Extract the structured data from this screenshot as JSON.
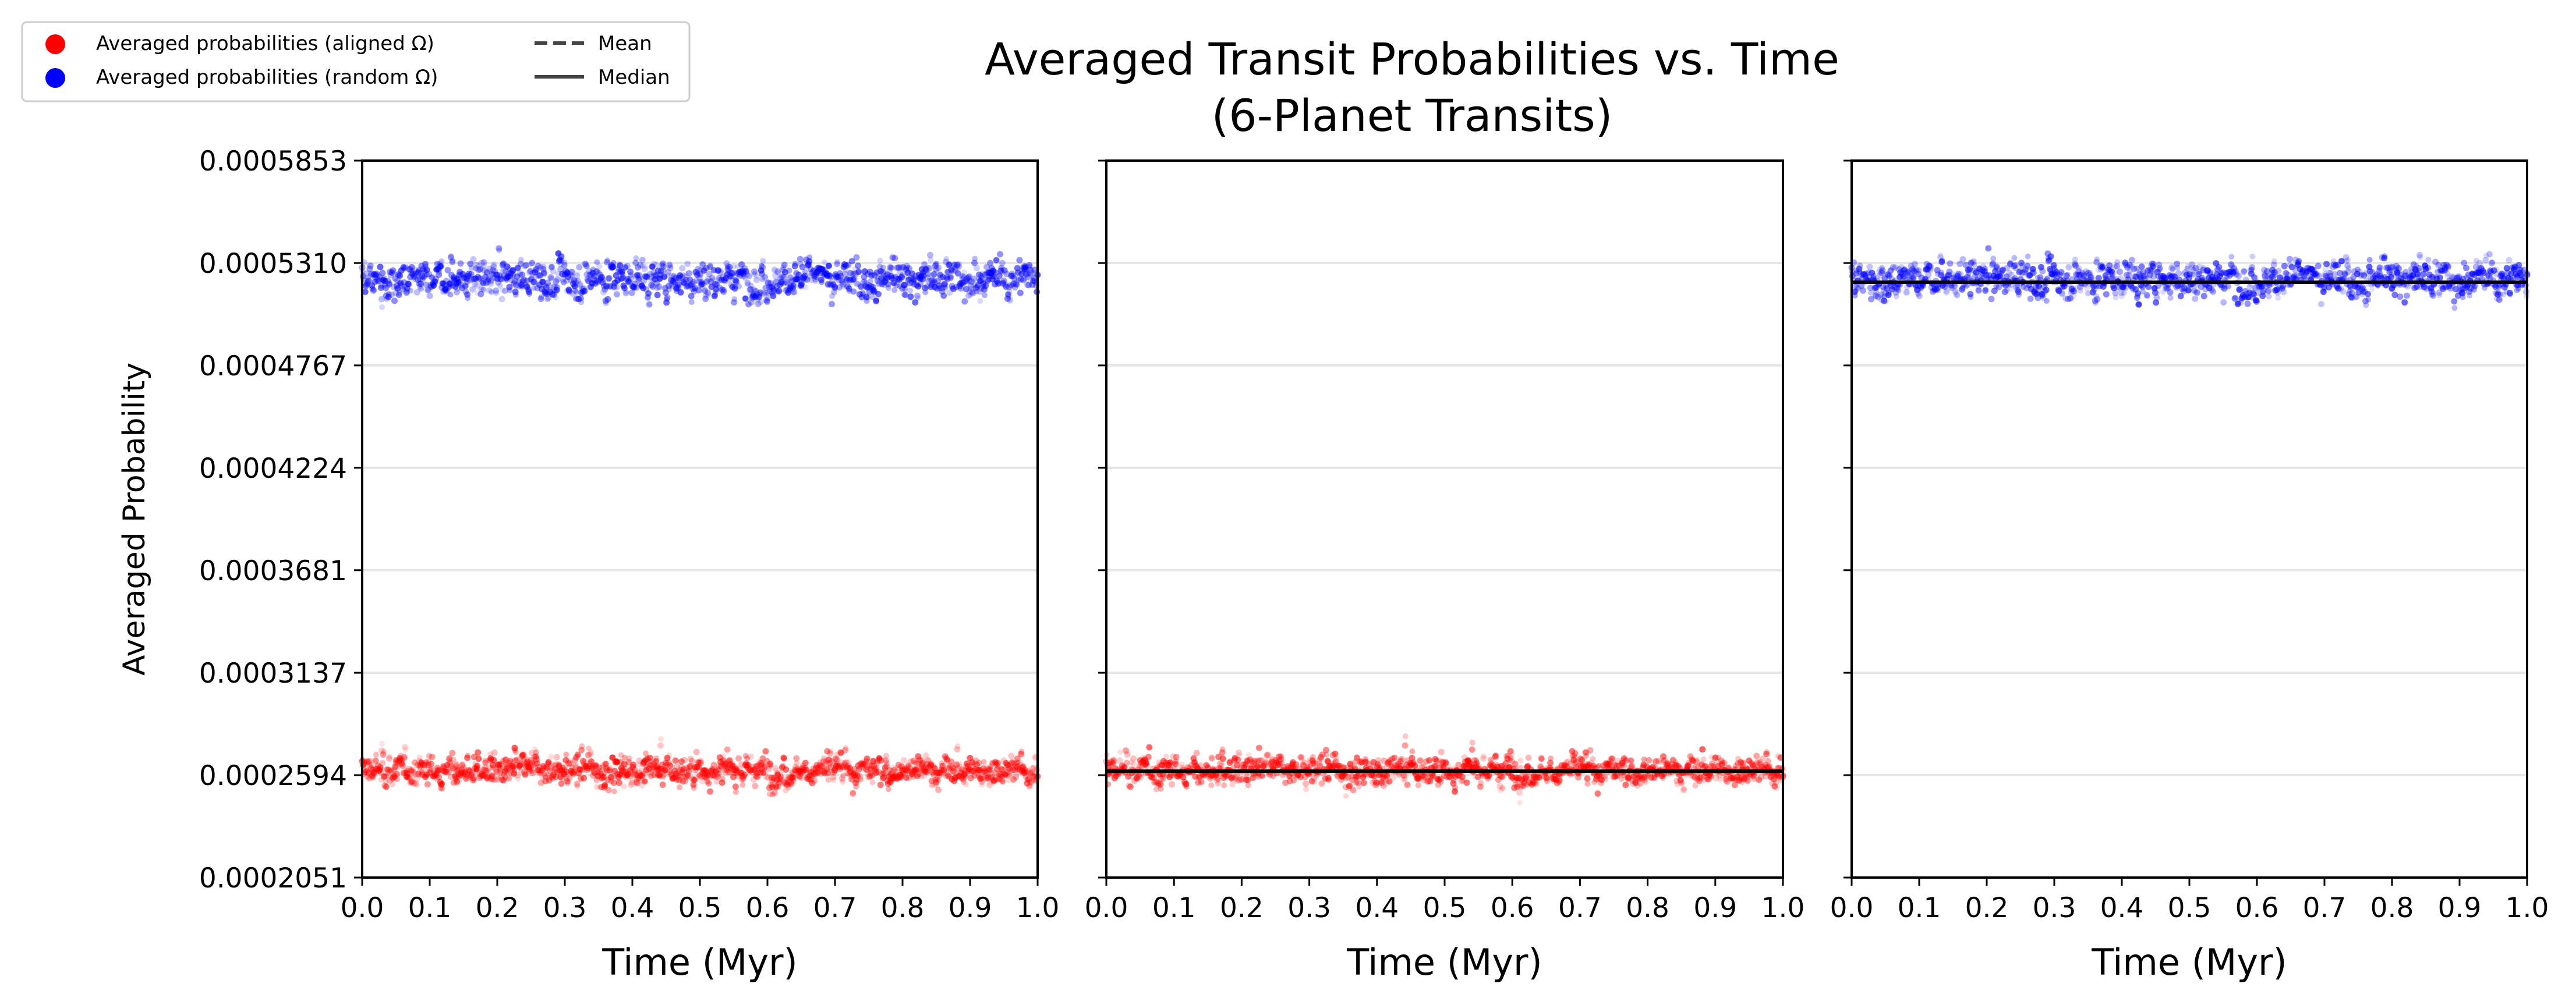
{
  "title_line1": "Averaged Transit Probabilities vs. Time",
  "title_line2": "(6-Planet Transits)",
  "legend": {
    "entries": [
      {
        "label": "Averaged probabilities (aligned Ω)",
        "marker": "dot",
        "color": "#ff0000"
      },
      {
        "label": "Averaged probabilities (random Ω)",
        "marker": "dot",
        "color": "#0000ff"
      },
      {
        "label": "Mean",
        "marker": "dashed-line",
        "color": "#444444"
      },
      {
        "label": "Median",
        "marker": "solid-line",
        "color": "#444444"
      }
    ]
  },
  "colors": {
    "aligned": "#ff0000",
    "random": "#0000ff",
    "median_line": "#000000"
  },
  "chart_data": [
    {
      "type": "scatter",
      "panel": "left",
      "xlabel": "Time (Myr)",
      "ylabel": "Averaged Probability",
      "xlim": [
        0.0,
        1.0
      ],
      "ylim": [
        0.0002051,
        0.0005853
      ],
      "xticks": [
        "0.0",
        "0.1",
        "0.2",
        "0.3",
        "0.4",
        "0.5",
        "0.6",
        "0.7",
        "0.8",
        "0.9",
        "1.0"
      ],
      "yticks": [
        "0.0002051",
        "0.0002594",
        "0.0003137",
        "0.0003681",
        "0.0004224",
        "0.0004767",
        "0.0005310",
        "0.0005853"
      ],
      "grid": "horizontal",
      "series": [
        {
          "name": "Averaged probabilities (aligned Ω)",
          "color": "#ff0000",
          "approx_center": 0.000262,
          "approx_range": [
            0.000225,
            0.000296
          ]
        },
        {
          "name": "Averaged probabilities (random Ω)",
          "color": "#0000ff",
          "approx_center": 0.000523,
          "approx_range": [
            0.000468,
            0.000573
          ]
        }
      ]
    },
    {
      "type": "scatter",
      "panel": "middle",
      "xlabel": "Time (Myr)",
      "xlim": [
        0.0,
        1.0
      ],
      "ylim": [
        0.0002051,
        0.0005853
      ],
      "xticks": [
        "0.0",
        "0.1",
        "0.2",
        "0.3",
        "0.4",
        "0.5",
        "0.6",
        "0.7",
        "0.8",
        "0.9",
        "1.0"
      ],
      "grid": "horizontal",
      "series": [
        {
          "name": "Averaged probabilities (aligned Ω)",
          "color": "#ff0000",
          "approx_center": 0.000262,
          "approx_range": [
            0.000225,
            0.000296
          ]
        }
      ],
      "median": 0.0002615
    },
    {
      "type": "scatter",
      "panel": "right",
      "xlabel": "Time (Myr)",
      "xlim": [
        0.0,
        1.0
      ],
      "ylim": [
        0.0002051,
        0.0005853
      ],
      "xticks": [
        "0.0",
        "0.1",
        "0.2",
        "0.3",
        "0.4",
        "0.5",
        "0.6",
        "0.7",
        "0.8",
        "0.9",
        "1.0"
      ],
      "grid": "horizontal",
      "series": [
        {
          "name": "Averaged probabilities (random Ω)",
          "color": "#0000ff",
          "approx_center": 0.000523,
          "approx_range": [
            0.000468,
            0.000573
          ]
        }
      ],
      "median": 0.0005208
    }
  ]
}
